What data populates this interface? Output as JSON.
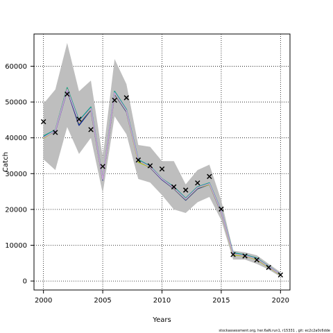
{
  "chart_data": {
    "type": "line",
    "xlabel": "Years",
    "ylabel": "Catch",
    "xlim": [
      1999.2,
      2020.8
    ],
    "ylim": [
      -2500,
      69000
    ],
    "x_ticks": [
      2000,
      2005,
      2010,
      2015,
      2020
    ],
    "y_ticks": [
      0,
      10000,
      20000,
      30000,
      40000,
      50000,
      60000
    ],
    "grid": true,
    "x": [
      2000,
      2001,
      2002,
      2003,
      2004,
      2005,
      2006,
      2007,
      2008,
      2009,
      2010,
      2011,
      2012,
      2013,
      2014,
      2015,
      2016,
      2017,
      2018,
      2019,
      2020
    ],
    "band": {
      "upper": [
        49500,
        53500,
        66500,
        53000,
        56000,
        34500,
        62000,
        55000,
        38000,
        37500,
        33500,
        33500,
        27000,
        31000,
        32500,
        22500,
        8500,
        8000,
        7200,
        4800,
        2500
      ],
      "lower": [
        34000,
        31000,
        43000,
        35500,
        40000,
        24500,
        46000,
        41000,
        28500,
        27500,
        24000,
        20000,
        19000,
        22000,
        23500,
        17000,
        6000,
        6000,
        4800,
        3200,
        1200
      ],
      "color": "#bebebe"
    },
    "series": [
      {
        "color": "#1a2f8c",
        "values": [
          40200,
          41800,
          53300,
          43500,
          47800,
          28200,
          52200,
          47300,
          33500,
          31700,
          28300,
          25800,
          22600,
          25800,
          27000,
          19200,
          7500,
          7000,
          6100,
          3900,
          1800
        ]
      },
      {
        "color": "#1aa08a",
        "values": [
          40500,
          42200,
          54000,
          44800,
          48600,
          28600,
          53000,
          47900,
          33900,
          32100,
          28600,
          26300,
          23100,
          26300,
          27400,
          19600,
          7900,
          7300,
          6400,
          4100,
          1900
        ]
      },
      {
        "color": "#a7c520",
        "values": [
          39900,
          42000,
          53600,
          44200,
          48000,
          28400,
          52400,
          47500,
          33200,
          31800,
          28500,
          25900,
          22800,
          26000,
          27000,
          19300,
          7300,
          7000,
          6000,
          3850,
          1750
        ]
      },
      {
        "color": "#c9a0dc",
        "values": [
          40100,
          42000,
          53500,
          44400,
          48200,
          28400,
          52600,
          47600,
          33600,
          31900,
          28500,
          26000,
          22900,
          26100,
          27200,
          19400,
          7600,
          7100,
          6200,
          4000,
          1850
        ]
      }
    ],
    "observed": {
      "marker": "x",
      "values": [
        44500,
        41500,
        52200,
        45200,
        42300,
        32000,
        50500,
        51200,
        33800,
        32200,
        31300,
        26300,
        25400,
        27400,
        29200,
        20100,
        7400,
        7000,
        5900,
        3800,
        1700
      ]
    }
  },
  "footer": {
    "text": "stockassessment.org, her.6aN.run1, r15331 , git: ec2c2a0c6dde"
  }
}
